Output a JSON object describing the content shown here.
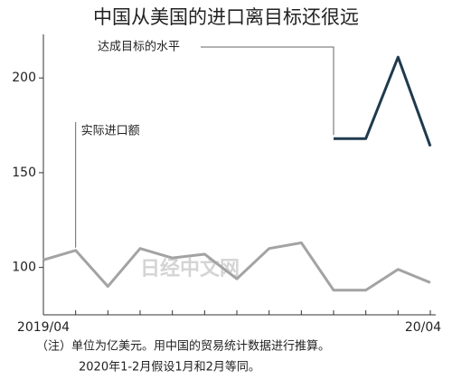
{
  "chart_data": {
    "type": "line",
    "title": "中国从美国的进口离目标还很远",
    "categories": [
      "2019/04",
      null,
      null,
      null,
      null,
      null,
      null,
      null,
      null,
      null,
      null,
      null,
      "20/04"
    ],
    "series": [
      {
        "name": "实际进口额",
        "color": "#a3a3a3",
        "values": [
          104,
          109,
          90,
          110,
          105,
          107,
          94,
          110,
          113,
          88,
          88,
          99,
          92
        ]
      },
      {
        "name": "达成目标的水平",
        "color": "#1f3a4d",
        "values": [
          null,
          null,
          null,
          null,
          null,
          null,
          null,
          null,
          null,
          168,
          168,
          211,
          164
        ]
      }
    ],
    "ylim": [
      75,
      223
    ],
    "yticks": [
      100,
      150,
      200
    ],
    "grid": false,
    "watermark": "日经中文网",
    "notes": [
      "（注）单位为亿美元。用中国的贸易统计数据进行推算。",
      "2020年1-2月假设1月和2月等同。"
    ]
  }
}
